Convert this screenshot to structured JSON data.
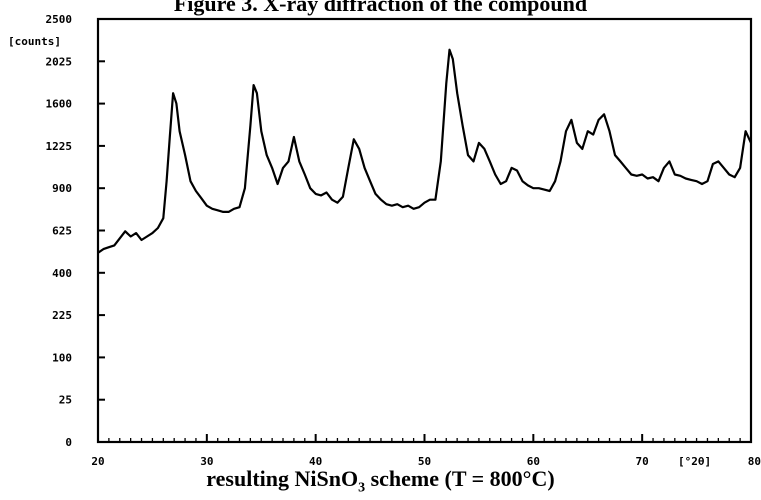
{
  "figure_title": "Figure 3. X-ray diffraction of the compound",
  "caption": {
    "prefix": "resulting NiSnO",
    "subscript": "3",
    "suffix": " scheme (T = 800°C)"
  },
  "chart_data": {
    "type": "line",
    "title": "Figure 3. X-ray diffraction of the compound",
    "xlabel": "resulting NiSnO3 scheme (T = 800°C)",
    "x_unit_label": "[°2θ]",
    "y_unit_label": "[counts]",
    "y_scale": "sqrt",
    "xlim": [
      20,
      80
    ],
    "ylim": [
      0,
      2500
    ],
    "x_ticks": [
      20,
      30,
      40,
      50,
      60,
      70,
      80
    ],
    "x_tick_labels": [
      "20",
      "30",
      "40",
      "50",
      "60",
      "70",
      "80"
    ],
    "y_ticks": [
      0,
      25,
      100,
      225,
      400,
      625,
      900,
      1225,
      1600,
      2025,
      2500
    ],
    "y_tick_labels": [
      "0",
      "25",
      "100",
      "225",
      "400",
      "625",
      "900",
      "1225",
      "1600",
      "2025",
      "2500"
    ],
    "grid": false,
    "series": [
      {
        "color": "#000000",
        "points": [
          [
            20.0,
            500
          ],
          [
            20.5,
            520
          ],
          [
            21.0,
            530
          ],
          [
            21.5,
            540
          ],
          [
            22.0,
            580
          ],
          [
            22.5,
            620
          ],
          [
            23.0,
            590
          ],
          [
            23.5,
            610
          ],
          [
            24.0,
            570
          ],
          [
            24.5,
            590
          ],
          [
            25.0,
            610
          ],
          [
            25.5,
            640
          ],
          [
            26.0,
            700
          ],
          [
            26.3,
            950
          ],
          [
            26.6,
            1300
          ],
          [
            26.9,
            1700
          ],
          [
            27.2,
            1600
          ],
          [
            27.5,
            1350
          ],
          [
            28.0,
            1150
          ],
          [
            28.5,
            950
          ],
          [
            29.0,
            880
          ],
          [
            29.5,
            830
          ],
          [
            30.0,
            780
          ],
          [
            30.5,
            760
          ],
          [
            31.0,
            750
          ],
          [
            31.5,
            740
          ],
          [
            32.0,
            740
          ],
          [
            32.5,
            760
          ],
          [
            33.0,
            770
          ],
          [
            33.5,
            900
          ],
          [
            34.0,
            1400
          ],
          [
            34.3,
            1780
          ],
          [
            34.6,
            1700
          ],
          [
            35.0,
            1350
          ],
          [
            35.5,
            1150
          ],
          [
            36.0,
            1050
          ],
          [
            36.5,
            930
          ],
          [
            37.0,
            1050
          ],
          [
            37.5,
            1100
          ],
          [
            38.0,
            1300
          ],
          [
            38.5,
            1100
          ],
          [
            39.0,
            1000
          ],
          [
            39.5,
            900
          ],
          [
            40.0,
            860
          ],
          [
            40.5,
            850
          ],
          [
            41.0,
            870
          ],
          [
            41.5,
            820
          ],
          [
            42.0,
            800
          ],
          [
            42.5,
            840
          ],
          [
            43.0,
            1050
          ],
          [
            43.5,
            1280
          ],
          [
            44.0,
            1200
          ],
          [
            44.5,
            1050
          ],
          [
            45.0,
            950
          ],
          [
            45.5,
            860
          ],
          [
            46.0,
            820
          ],
          [
            46.5,
            790
          ],
          [
            47.0,
            780
          ],
          [
            47.5,
            790
          ],
          [
            48.0,
            770
          ],
          [
            48.5,
            780
          ],
          [
            49.0,
            760
          ],
          [
            49.5,
            770
          ],
          [
            50.0,
            800
          ],
          [
            50.5,
            820
          ],
          [
            51.0,
            820
          ],
          [
            51.5,
            1100
          ],
          [
            52.0,
            1800
          ],
          [
            52.3,
            2150
          ],
          [
            52.6,
            2050
          ],
          [
            53.0,
            1700
          ],
          [
            53.5,
            1400
          ],
          [
            54.0,
            1150
          ],
          [
            54.5,
            1100
          ],
          [
            55.0,
            1250
          ],
          [
            55.5,
            1200
          ],
          [
            56.0,
            1100
          ],
          [
            56.5,
            1000
          ],
          [
            57.0,
            930
          ],
          [
            57.5,
            950
          ],
          [
            58.0,
            1050
          ],
          [
            58.5,
            1030
          ],
          [
            59.0,
            950
          ],
          [
            59.5,
            920
          ],
          [
            60.0,
            900
          ],
          [
            60.5,
            900
          ],
          [
            61.0,
            890
          ],
          [
            61.5,
            880
          ],
          [
            62.0,
            950
          ],
          [
            62.5,
            1100
          ],
          [
            63.0,
            1350
          ],
          [
            63.5,
            1450
          ],
          [
            64.0,
            1250
          ],
          [
            64.5,
            1200
          ],
          [
            65.0,
            1350
          ],
          [
            65.5,
            1320
          ],
          [
            66.0,
            1450
          ],
          [
            66.5,
            1500
          ],
          [
            67.0,
            1350
          ],
          [
            67.5,
            1150
          ],
          [
            68.0,
            1100
          ],
          [
            68.5,
            1050
          ],
          [
            69.0,
            1000
          ],
          [
            69.5,
            990
          ],
          [
            70.0,
            1000
          ],
          [
            70.5,
            970
          ],
          [
            71.0,
            980
          ],
          [
            71.5,
            950
          ],
          [
            72.0,
            1050
          ],
          [
            72.5,
            1100
          ],
          [
            73.0,
            1000
          ],
          [
            73.5,
            990
          ],
          [
            74.0,
            970
          ],
          [
            74.5,
            960
          ],
          [
            75.0,
            950
          ],
          [
            75.5,
            930
          ],
          [
            76.0,
            950
          ],
          [
            76.5,
            1080
          ],
          [
            77.0,
            1100
          ],
          [
            77.5,
            1050
          ],
          [
            78.0,
            1000
          ],
          [
            78.5,
            980
          ],
          [
            79.0,
            1050
          ],
          [
            79.5,
            1350
          ],
          [
            80.0,
            1250
          ]
        ]
      }
    ]
  }
}
